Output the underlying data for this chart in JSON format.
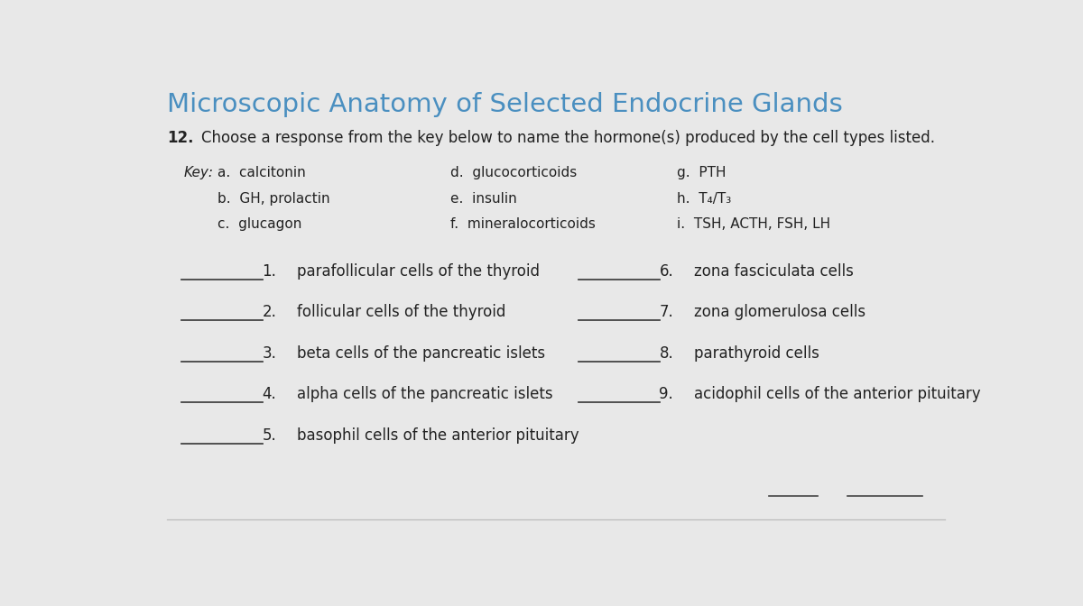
{
  "title": "Microscopic Anatomy of Selected Endocrine Glands",
  "title_color": "#4a8fc0",
  "title_fontsize": 21,
  "exercise_label": "12.",
  "exercise_text": "Choose a response from the key below to name the hormone(s) produced by the cell types listed.",
  "exercise_fontsize": 12,
  "key_label": "Key:",
  "key_col1": [
    "a.  calcitonin",
    "b.  GH, prolactin",
    "c.  glucagon"
  ],
  "key_col2": [
    "d.  glucocorticoids",
    "e.  insulin",
    "f.  mineralocorticoids"
  ],
  "key_col3": [
    "g.  PTH",
    "h.  T₄/T₃",
    "i.  TSH, ACTH, FSH, LH"
  ],
  "key_fontsize": 11,
  "questions_left_nums": [
    "1.",
    "2.",
    "3.",
    "4.",
    "5."
  ],
  "questions_left_texts": [
    "parafollicular cells of the thyroid",
    "follicular cells of the thyroid",
    "beta cells of the pancreatic islets",
    "alpha cells of the pancreatic islets",
    "basophil cells of the anterior pituitary"
  ],
  "questions_right_nums": [
    "6.",
    "7.",
    "8.",
    "9."
  ],
  "questions_right_texts": [
    "zona fasciculata cells",
    "zona glomerulosa cells",
    "parathyroid cells",
    "acidophil cells of the anterior pituitary"
  ],
  "question_fontsize": 12,
  "bg_color": "#e8e8e8",
  "text_color": "#222222",
  "line_color": "#444444",
  "separator_color": "#bbbbbb"
}
